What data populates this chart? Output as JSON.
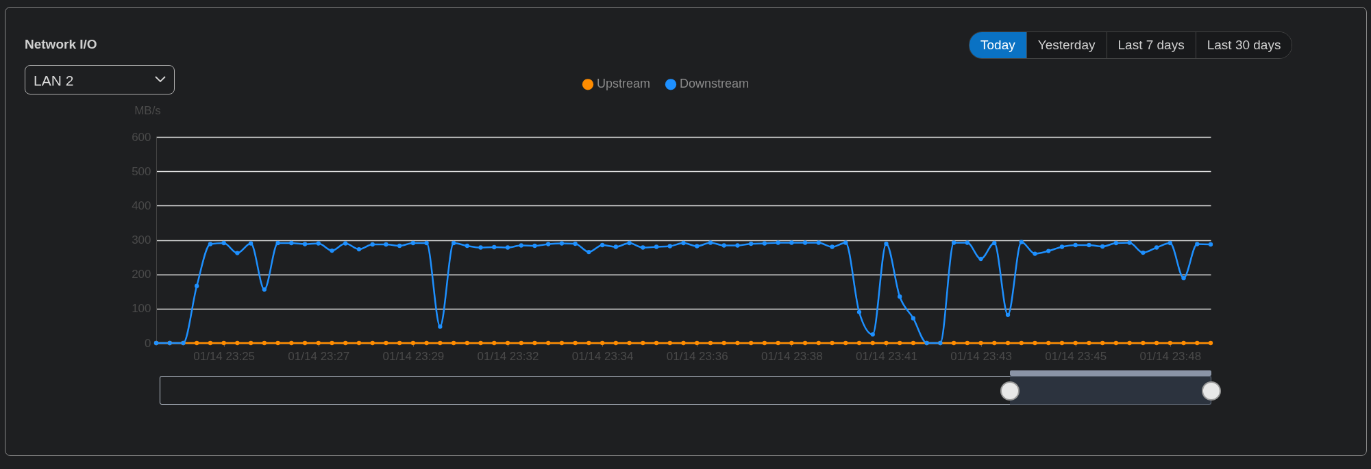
{
  "chart_data": {
    "type": "line",
    "title": "Network I/O",
    "subtitle": "LAN 2",
    "annotations": [
      "Today",
      "Yesterday",
      "Last 7 days",
      "Last 30 days"
    ],
    "ylabel": "MB/s",
    "categories": [
      null,
      null,
      null,
      null,
      null,
      "01/14 23:25",
      null,
      null,
      null,
      null,
      null,
      null,
      "01/14 23:27",
      null,
      null,
      null,
      null,
      null,
      null,
      "01/14 23:29",
      null,
      null,
      null,
      null,
      null,
      null,
      "01/14 23:32",
      null,
      null,
      null,
      null,
      null,
      null,
      "01/14 23:34",
      null,
      null,
      null,
      null,
      null,
      null,
      "01/14 23:36",
      null,
      null,
      null,
      null,
      null,
      null,
      "01/14 23:38",
      null,
      null,
      null,
      null,
      null,
      null,
      "01/14 23:41",
      null,
      null,
      null,
      null,
      null,
      null,
      "01/14 23:43",
      null,
      null,
      null,
      null,
      null,
      null,
      "01/14 23:45",
      null,
      null,
      null,
      null,
      null,
      null,
      "01/14 23:48",
      null,
      null,
      null
    ],
    "series": [
      {
        "name": "Upstream",
        "color": "#ff8c00",
        "values": [
          0,
          0,
          0,
          0,
          0,
          0,
          0,
          0,
          0,
          0,
          0,
          0,
          0,
          0,
          0,
          0,
          0,
          0,
          0,
          0,
          0,
          0,
          0,
          0,
          0,
          0,
          0,
          0,
          0,
          0,
          0,
          0,
          0,
          0,
          0,
          0,
          0,
          0,
          0,
          0,
          0,
          0,
          0,
          0,
          0,
          0,
          0,
          0,
          0,
          0,
          0,
          0,
          0,
          0,
          0,
          0,
          0,
          0,
          0,
          0,
          0,
          0,
          0,
          0,
          0,
          0,
          0,
          0,
          0,
          0,
          0,
          0,
          0,
          0,
          0,
          0,
          0,
          0,
          0
        ]
      },
      {
        "name": "Downstream",
        "color": "#1e90ff",
        "values": [
          0,
          0,
          0,
          166,
          288,
          291,
          262,
          290,
          156,
          291,
          291,
          288,
          290,
          269,
          290,
          273,
          287,
          287,
          283,
          291,
          291,
          48,
          291,
          283,
          278,
          279,
          278,
          284,
          283,
          288,
          290,
          289,
          265,
          285,
          280,
          291,
          278,
          280,
          282,
          291,
          282,
          292,
          284,
          284,
          289,
          290,
          292,
          292,
          292,
          292,
          280,
          292,
          90,
          25,
          289,
          135,
          72,
          0,
          0,
          292,
          292,
          245,
          291,
          82,
          294,
          260,
          268,
          280,
          285,
          285,
          281,
          291,
          292,
          263,
          278,
          291,
          189,
          288,
          287
        ]
      }
    ],
    "ylim": [
      0,
      600
    ],
    "yticks": [
      0,
      100,
      200,
      300,
      400,
      500,
      600
    ],
    "grid": "y",
    "legend": "top",
    "marker": "circle",
    "line_style": "solid"
  }
}
